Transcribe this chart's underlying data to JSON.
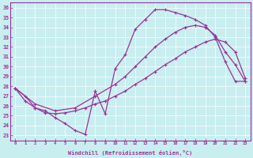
{
  "xlabel": "Windchill (Refroidissement éolien,°C)",
  "bg_color": "#c8eef0",
  "line_color": "#993399",
  "grid_color": "#aadddd",
  "xlim": [
    -0.5,
    23.5
  ],
  "ylim": [
    22.5,
    36.5
  ],
  "xticks": [
    0,
    1,
    2,
    3,
    4,
    5,
    6,
    7,
    8,
    9,
    10,
    11,
    12,
    13,
    14,
    15,
    16,
    17,
    18,
    19,
    20,
    21,
    22,
    23
  ],
  "yticks": [
    23,
    24,
    25,
    26,
    27,
    28,
    29,
    30,
    31,
    32,
    33,
    34,
    35,
    36
  ],
  "line1_x": [
    0,
    1,
    2,
    3,
    4,
    5,
    6,
    7,
    8,
    9,
    10,
    11,
    12,
    13,
    14,
    15,
    16,
    17,
    18,
    19,
    20,
    21,
    22,
    23
  ],
  "line1_y": [
    27.8,
    27.0,
    25.8,
    25.5,
    24.8,
    24.2,
    23.5,
    23.1,
    27.5,
    25.2,
    29.8,
    31.2,
    33.8,
    34.8,
    35.8,
    35.8,
    35.5,
    35.2,
    34.8,
    34.2,
    33.0,
    30.5,
    28.5,
    28.5
  ],
  "line2_x": [
    0,
    2,
    4,
    6,
    8,
    10,
    11,
    12,
    13,
    14,
    15,
    16,
    17,
    18,
    19,
    20,
    21,
    22,
    23
  ],
  "line2_y": [
    27.8,
    26.2,
    25.5,
    25.8,
    27.0,
    28.2,
    29.0,
    30.0,
    31.0,
    32.0,
    32.8,
    33.5,
    34.0,
    34.2,
    34.0,
    33.2,
    31.5,
    30.2,
    28.5
  ],
  "line3_x": [
    0,
    1,
    2,
    3,
    4,
    5,
    6,
    7,
    8,
    9,
    10,
    11,
    12,
    13,
    14,
    15,
    16,
    17,
    18,
    19,
    20,
    21,
    22,
    23
  ],
  "line3_y": [
    27.8,
    26.5,
    25.8,
    25.3,
    25.2,
    25.3,
    25.5,
    25.8,
    26.2,
    26.5,
    27.0,
    27.5,
    28.2,
    28.8,
    29.5,
    30.2,
    30.8,
    31.5,
    32.0,
    32.5,
    32.8,
    32.5,
    31.5,
    28.8
  ]
}
